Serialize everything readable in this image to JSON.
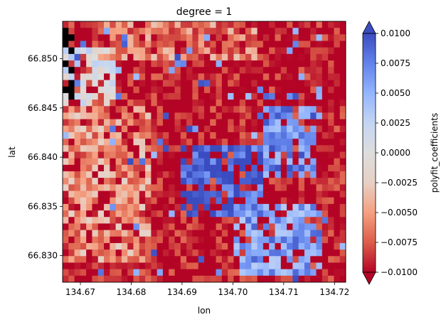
{
  "chart_data": {
    "type": "heatmap",
    "title": "degree = 1",
    "xlabel": "lon",
    "ylabel": "lat",
    "xlim": [
      134.6665,
      134.7222
    ],
    "ylim": [
      66.8273,
      66.8538
    ],
    "x_ticks": [
      "134.67",
      "134.68",
      "134.69",
      "134.70",
      "134.71",
      "134.72"
    ],
    "x_tick_values": [
      134.67,
      134.68,
      134.69,
      134.7,
      134.71,
      134.72
    ],
    "y_ticks": [
      "66.830",
      "66.835",
      "66.840",
      "66.845",
      "66.850"
    ],
    "y_tick_values": [
      66.83,
      66.835,
      66.84,
      66.845,
      66.85
    ],
    "colorbar": {
      "label": "polyfit_coefficients",
      "vmin": -0.01,
      "vmax": 0.01,
      "extend": "both",
      "colormap": "coolwarm_r",
      "ticks": [
        "−0.0100",
        "−0.0075",
        "−0.0050",
        "−0.0025",
        "0.0000",
        "0.0025",
        "0.0050",
        "0.0075",
        "0.0100"
      ],
      "tick_values": [
        -0.01,
        -0.0075,
        -0.005,
        -0.0025,
        0.0,
        0.0025,
        0.005,
        0.0075,
        0.01
      ],
      "colors": [
        "#b40426",
        "#dc5d4a",
        "#f5a081",
        "#e7d0c4",
        "#dddddd",
        "#c4d5f3",
        "#93b5fe",
        "#6282ea",
        "#3b4cc0"
      ]
    },
    "grid": false,
    "nodata_color": "#ffffff",
    "field_summary": {
      "grid_cols": 48,
      "grid_rows": 40,
      "dominant_value": -0.01,
      "regions": [
        {
          "name": "light-negative area west-center",
          "lon": [
            134.667,
            134.684
          ],
          "lat": [
            66.829,
            66.845
          ],
          "value": -0.005
        },
        {
          "name": "strong-positive cluster center",
          "lon": [
            134.69,
            134.706
          ],
          "lat": [
            66.834,
            66.841
          ],
          "value": 0.009
        },
        {
          "name": "positive patch east-center",
          "lon": [
            134.706,
            134.716
          ],
          "lat": [
            66.838,
            66.845
          ],
          "value": 0.007
        },
        {
          "name": "near-zero patch northwest",
          "lon": [
            134.667,
            134.677
          ],
          "lat": [
            66.845,
            66.851
          ],
          "value": 0.001
        },
        {
          "name": "positive patches south",
          "lon": [
            134.7,
            134.718
          ],
          "lat": [
            66.828,
            66.835
          ],
          "value": 0.006
        },
        {
          "name": "moderate-negative band north",
          "lon": [
            134.674,
            134.705
          ],
          "lat": [
            66.85,
            66.854
          ],
          "value": -0.006
        }
      ]
    }
  }
}
